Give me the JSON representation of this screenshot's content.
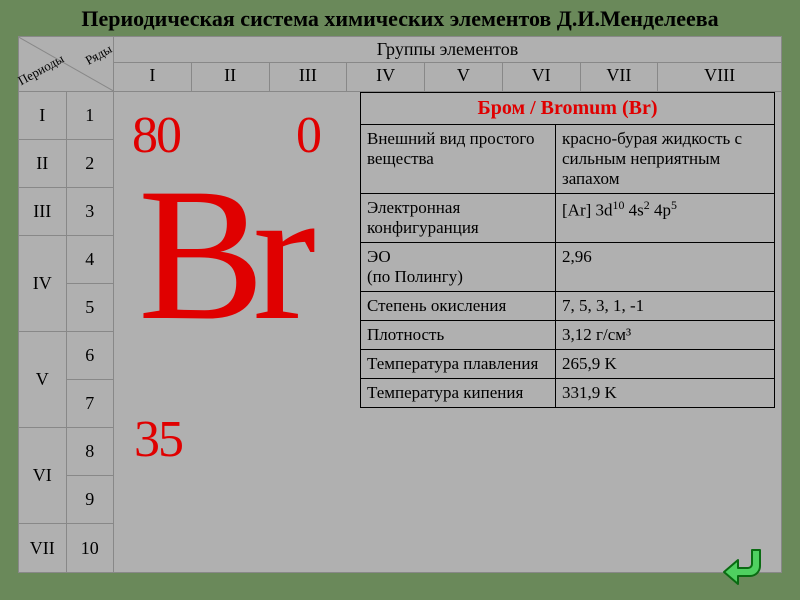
{
  "title": "Периодическая система химических элементов Д.И.Менделеева",
  "header": {
    "periods_label": "Периоды",
    "rows_label": "Ряды",
    "groups_title": "Группы элементов",
    "groups": [
      "I",
      "II",
      "III",
      "IV",
      "V",
      "VI",
      "VII",
      "VIII"
    ]
  },
  "periods": [
    {
      "label": "I",
      "rows": [
        "1"
      ]
    },
    {
      "label": "II",
      "rows": [
        "2"
      ]
    },
    {
      "label": "III",
      "rows": [
        "3"
      ]
    },
    {
      "label": "IV",
      "rows": [
        "4",
        "5"
      ]
    },
    {
      "label": "V",
      "rows": [
        "6",
        "7"
      ]
    },
    {
      "label": "VI",
      "rows": [
        "8",
        "9"
      ]
    },
    {
      "label": "VII",
      "rows": [
        "10"
      ]
    }
  ],
  "element": {
    "symbol": "Br",
    "mass_number": "80",
    "charge": "0",
    "atomic_number": "35",
    "title": "Бром / Bromum (Br)",
    "symbol_color": "#e00000",
    "props": [
      {
        "label": "Внешний вид простого вещества",
        "value": "красно-бурая жидкость с сильным неприятным запахом"
      },
      {
        "label": "Электронная конфигуранция",
        "value_html": "[Ar] 3d<sup>10</sup> 4s<sup>2</sup> 4p<sup>5</sup>"
      },
      {
        "label": " ЭО\n(по Полингу)",
        "value": "2,96"
      },
      {
        "label": "Степень окисления",
        "value": "7, 5, 3, 1, -1"
      },
      {
        "label": "Плотность",
        "value": "3,12 г/см³"
      },
      {
        "label": "Температура плавления",
        "value": "265,9 K"
      },
      {
        "label": "Температура кипения",
        "value": "331,9 K"
      }
    ]
  },
  "colors": {
    "page_bg": "#6a895a",
    "panel_bg": "#b0b0b0",
    "border": "#888888",
    "detail_border": "#000000",
    "accent": "#e00000"
  },
  "nav": {
    "back_icon": "u-turn-icon"
  }
}
